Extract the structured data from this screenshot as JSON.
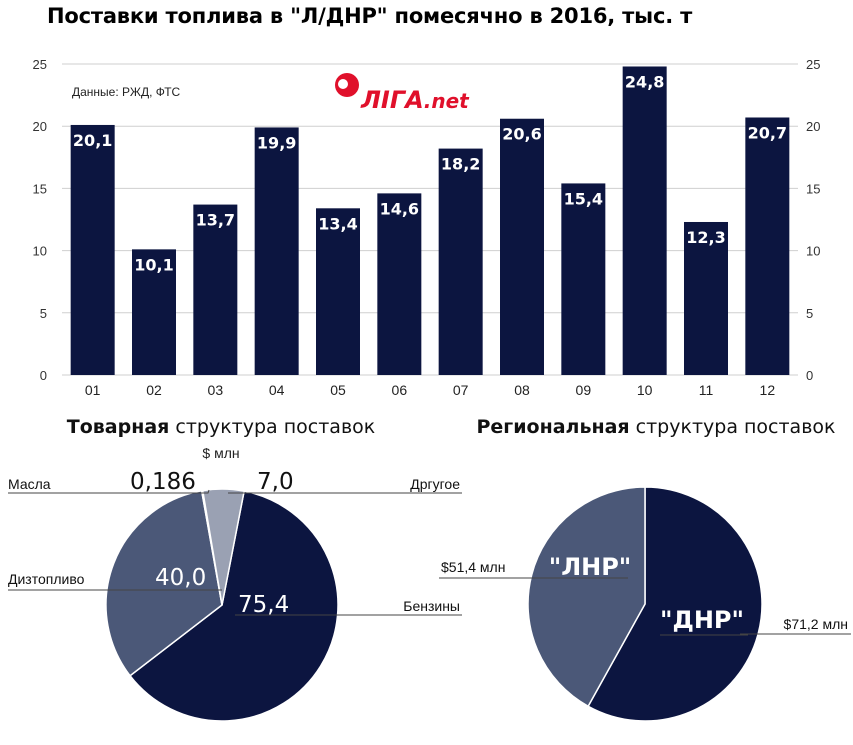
{
  "title": "Поставки топлива в \"Л/ДНР\" помесячно в 2016, тыс. т",
  "source": "Данные: РЖД, ФТС",
  "logo": {
    "text": "ЛІГА.net",
    "mark": "ЛІГА",
    "suffix": ".net",
    "color": "#e0102b"
  },
  "colors": {
    "bar": "#0c1540",
    "dark": "#0c1540",
    "mid": "#4b5878",
    "light": "#9aa1b3",
    "gridline": "#cfcfcf"
  },
  "chart_data": [
    {
      "type": "bar",
      "title": "Поставки топлива в \"Л/ДНР\" помесячно в 2016, тыс. т",
      "categories": [
        "01",
        "02",
        "03",
        "04",
        "05",
        "06",
        "07",
        "08",
        "09",
        "10",
        "11",
        "12"
      ],
      "values": [
        20.1,
        10.1,
        13.7,
        19.9,
        13.4,
        14.6,
        18.2,
        20.6,
        15.4,
        24.8,
        12.3,
        20.7
      ],
      "value_labels": [
        "20,1",
        "10,1",
        "13,7",
        "19,9",
        "13,4",
        "14,6",
        "18,2",
        "20,6",
        "15,4",
        "24,8",
        "12,3",
        "20,7"
      ],
      "y_ticks": [
        0,
        5,
        10,
        15,
        20,
        25
      ],
      "ylim": [
        0,
        25
      ],
      "y_axis": "both sides",
      "grid": true
    },
    {
      "type": "pie",
      "title_bold": "Товарная",
      "title_rest": " структура поставок",
      "unit": "$ млн",
      "slices": [
        {
          "name": "Бензины",
          "value": 75.4,
          "label": "75,4",
          "color": "#0c1540"
        },
        {
          "name": "Дизтопливо",
          "value": 40.0,
          "label": "40,0",
          "color": "#4b5878"
        },
        {
          "name": "Масла",
          "value": 0.186,
          "label": "0,186",
          "color": "#dcdfe6"
        },
        {
          "name": "Дргугое",
          "value": 7.0,
          "label": "7,0",
          "color": "#9aa1b3"
        }
      ]
    },
    {
      "type": "pie",
      "title_bold": "Региональная",
      "title_rest": " структура поставок",
      "slices": [
        {
          "name": "\"ДНР\"",
          "value": 71.2,
          "label": "$71,2 млн",
          "color": "#0c1540"
        },
        {
          "name": "\"ЛНР\"",
          "value": 51.4,
          "label": "$51,4 млн",
          "color": "#4b5878"
        }
      ]
    }
  ]
}
